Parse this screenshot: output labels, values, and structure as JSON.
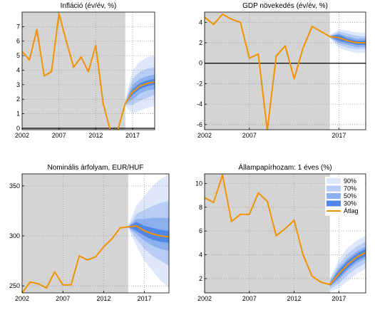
{
  "colors": {
    "history_bg": "#d4d4d4",
    "line": "#f39200",
    "zero_line": "#000000",
    "band90": "#dfe8fb",
    "band70": "#b7cdf6",
    "band50": "#8caff0",
    "band30": "#4f86e8",
    "grid": "#9a9a9a"
  },
  "legend": {
    "items": [
      {
        "label": "90%",
        "color": "#dfe8fb"
      },
      {
        "label": "70%",
        "color": "#b7cdf6"
      },
      {
        "label": "50%",
        "color": "#8caff0"
      },
      {
        "label": "30%",
        "color": "#4f86e8"
      },
      {
        "label": "Átlag",
        "color": "#f39200",
        "kind": "line"
      }
    ],
    "placement": "top-right of bottom-right panel"
  },
  "chart_data": [
    {
      "type": "line",
      "title": "Infláció (év/év, %)",
      "xlabel": "",
      "ylabel": "",
      "xlim": [
        2002,
        2020
      ],
      "ylim": [
        -0.1,
        8
      ],
      "xticks": [
        2002,
        2007,
        2012,
        2017
      ],
      "yticks": [
        0,
        1,
        2,
        3,
        4,
        5,
        6,
        7
      ],
      "grid": true,
      "zero_line": true,
      "history_end": 2016,
      "series": [
        {
          "name": "Átlag",
          "x": [
            2002,
            2003,
            2004,
            2005,
            2006,
            2007,
            2008,
            2009,
            2010,
            2011,
            2012,
            2013,
            2014,
            2015,
            2016,
            2017,
            2018,
            2019,
            2020
          ],
          "y": [
            5.3,
            4.7,
            6.8,
            3.6,
            3.9,
            7.9,
            6.0,
            4.2,
            4.9,
            3.9,
            5.7,
            1.7,
            -0.2,
            -0.1,
            1.7,
            2.5,
            2.9,
            3.1,
            3.2
          ]
        }
      ],
      "fan": {
        "x": [
          2016,
          2017,
          2018,
          2019,
          2020
        ],
        "p90": [
          [
            1.5,
            1.9
          ],
          [
            1.0,
            4.0
          ],
          [
            1.2,
            4.6
          ],
          [
            1.4,
            4.9
          ],
          [
            1.5,
            5.0
          ]
        ],
        "p70": [
          [
            1.6,
            1.8
          ],
          [
            1.6,
            3.4
          ],
          [
            1.9,
            3.9
          ],
          [
            2.1,
            4.1
          ],
          [
            2.3,
            4.2
          ]
        ],
        "p50": [
          [
            1.65,
            1.75
          ],
          [
            2.0,
            3.0
          ],
          [
            2.4,
            3.4
          ],
          [
            2.6,
            3.6
          ],
          [
            2.7,
            3.7
          ]
        ],
        "p30": [
          [
            1.68,
            1.72
          ],
          [
            2.3,
            2.7
          ],
          [
            2.7,
            3.1
          ],
          [
            2.9,
            3.3
          ],
          [
            3.0,
            3.4
          ]
        ]
      }
    },
    {
      "type": "line",
      "title": "GDP növekedés (év/év, %)",
      "xlabel": "",
      "ylabel": "",
      "xlim": [
        2002,
        2020
      ],
      "ylim": [
        -6.5,
        5
      ],
      "xticks": [
        2002,
        2007,
        2017
      ],
      "yticks": [
        -6,
        -4,
        -2,
        0,
        2,
        4
      ],
      "grid": true,
      "zero_line": true,
      "history_end": 2016,
      "series": [
        {
          "name": "Átlag",
          "x": [
            2002,
            2003,
            2004,
            2005,
            2006,
            2007,
            2008,
            2009,
            2010,
            2011,
            2012,
            2013,
            2014,
            2015,
            2016,
            2017,
            2018,
            2019,
            2020
          ],
          "y": [
            4.5,
            3.8,
            4.8,
            4.3,
            4.0,
            0.5,
            0.9,
            -6.6,
            0.7,
            1.7,
            -1.5,
            1.5,
            3.6,
            3.1,
            2.6,
            2.5,
            2.2,
            2.0,
            2.0
          ]
        }
      ],
      "fan": {
        "x": [
          2016,
          2017,
          2018,
          2019,
          2020
        ],
        "p90": [
          [
            2.4,
            2.8
          ],
          [
            1.5,
            3.3
          ],
          [
            1.2,
            3.2
          ],
          [
            1.0,
            3.0
          ],
          [
            1.0,
            3.0
          ]
        ],
        "p70": [
          [
            2.5,
            2.7
          ],
          [
            1.8,
            3.1
          ],
          [
            1.5,
            2.9
          ],
          [
            1.4,
            2.7
          ],
          [
            1.4,
            2.6
          ]
        ],
        "p50": [
          [
            2.55,
            2.65
          ],
          [
            2.0,
            2.9
          ],
          [
            1.8,
            2.6
          ],
          [
            1.6,
            2.4
          ],
          [
            1.6,
            2.4
          ]
        ],
        "p30": [
          [
            2.58,
            2.62
          ],
          [
            2.2,
            2.8
          ],
          [
            2.0,
            2.4
          ],
          [
            1.8,
            2.2
          ],
          [
            1.8,
            2.2
          ]
        ]
      }
    },
    {
      "type": "line",
      "title": "Nominális árfolyam, EUR/HUF",
      "xlabel": "",
      "ylabel": "",
      "xlim": [
        2002,
        2020
      ],
      "ylim": [
        243,
        362
      ],
      "xticks": [
        2002,
        2007,
        2012,
        2017
      ],
      "yticks": [
        250,
        300,
        350
      ],
      "grid": true,
      "zero_line": false,
      "history_end": 2015,
      "series": [
        {
          "name": "Átlag",
          "x": [
            2002,
            2003,
            2004,
            2005,
            2006,
            2007,
            2008,
            2009,
            2010,
            2011,
            2012,
            2013,
            2014,
            2015,
            2016,
            2017,
            2018,
            2019,
            2020
          ],
          "y": [
            243,
            254,
            252,
            248,
            264,
            251,
            251,
            280,
            276,
            279,
            289,
            297,
            308,
            309,
            310,
            305,
            302,
            300,
            299
          ]
        }
      ],
      "fan": {
        "x": [
          2015,
          2016,
          2017,
          2018,
          2019,
          2020
        ],
        "p90": [
          [
            308,
            310
          ],
          [
            290,
            330
          ],
          [
            275,
            340
          ],
          [
            265,
            350
          ],
          [
            255,
            357
          ],
          [
            248,
            362
          ]
        ],
        "p70": [
          [
            308.5,
            309.5
          ],
          [
            297,
            322
          ],
          [
            287,
            326
          ],
          [
            280,
            330
          ],
          [
            275,
            333
          ],
          [
            270,
            335
          ]
        ],
        "p50": [
          [
            308.7,
            309.3
          ],
          [
            302,
            317
          ],
          [
            295,
            317
          ],
          [
            290,
            318
          ],
          [
            287,
            318
          ],
          [
            285,
            318
          ]
        ],
        "p30": [
          [
            308.9,
            309.1
          ],
          [
            305,
            314
          ],
          [
            300,
            310
          ],
          [
            296,
            308
          ],
          [
            294,
            306
          ],
          [
            293,
            305
          ]
        ]
      }
    },
    {
      "type": "line",
      "title": "Állampapírhozam: 1 éves (%)",
      "xlabel": "",
      "ylabel": "",
      "xlim": [
        2002,
        2020
      ],
      "ylim": [
        0.8,
        10.8
      ],
      "xticks": [
        2002,
        2007,
        2012,
        2017
      ],
      "yticks": [
        2,
        4,
        6,
        8,
        10
      ],
      "grid": true,
      "zero_line": false,
      "history_end": 2016,
      "series": [
        {
          "name": "Átlag",
          "x": [
            2002,
            2003,
            2004,
            2005,
            2006,
            2007,
            2008,
            2009,
            2010,
            2011,
            2012,
            2013,
            2014,
            2015,
            2016,
            2017,
            2018,
            2019,
            2020
          ],
          "y": [
            8.8,
            8.4,
            10.7,
            6.8,
            7.4,
            7.4,
            9.2,
            8.5,
            5.6,
            6.2,
            6.9,
            4.0,
            2.2,
            1.7,
            1.5,
            2.4,
            3.2,
            3.8,
            4.2
          ]
        }
      ],
      "fan": {
        "x": [
          2016,
          2017,
          2018,
          2019,
          2020
        ],
        "p90": [
          [
            0.9,
            2.0
          ],
          [
            1.2,
            3.6
          ],
          [
            1.8,
            4.6
          ],
          [
            2.4,
            5.2
          ],
          [
            2.8,
            5.6
          ]
        ],
        "p70": [
          [
            1.1,
            1.9
          ],
          [
            1.6,
            3.2
          ],
          [
            2.3,
            4.1
          ],
          [
            2.9,
            4.7
          ],
          [
            3.3,
            5.1
          ]
        ],
        "p50": [
          [
            1.3,
            1.7
          ],
          [
            1.9,
            2.9
          ],
          [
            2.7,
            3.7
          ],
          [
            3.3,
            4.3
          ],
          [
            3.7,
            4.7
          ]
        ],
        "p30": [
          [
            1.4,
            1.6
          ],
          [
            2.1,
            2.7
          ],
          [
            2.9,
            3.5
          ],
          [
            3.5,
            4.1
          ],
          [
            3.9,
            4.5
          ]
        ]
      }
    }
  ]
}
